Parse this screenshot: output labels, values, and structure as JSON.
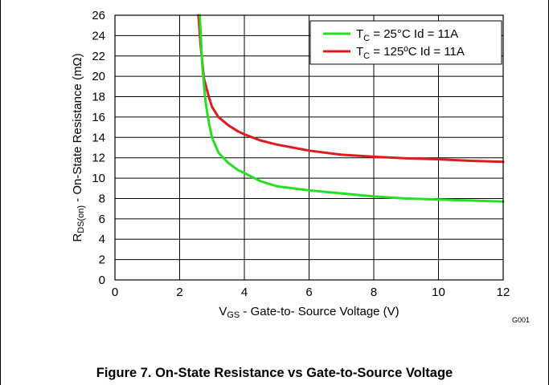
{
  "caption": "Figure 7. On-State Resistance vs Gate-to-Source Voltage",
  "chart_data": {
    "type": "line",
    "title": "",
    "xlabel": {
      "prefix": "V",
      "sub": "GS",
      "rest": " - Gate-to- Source Voltage (V)"
    },
    "ylabel": {
      "prefix": "R",
      "sub": "DS(on)",
      "rest": " - On-State Resistance (mΩ)"
    },
    "xlim": [
      0,
      12
    ],
    "ylim": [
      0,
      26
    ],
    "xticks": [
      0,
      2,
      4,
      6,
      8,
      10,
      12
    ],
    "yticks": [
      0,
      2,
      4,
      6,
      8,
      10,
      12,
      14,
      16,
      18,
      20,
      22,
      24,
      26
    ],
    "grid": true,
    "legend_position": "top-right",
    "figure_id": "G001",
    "series": [
      {
        "name": {
          "pre": "T",
          "sub": "C",
          "post": " = 25°C   Id = 11A"
        },
        "color": "#22e022",
        "x": [
          2.62,
          2.7,
          2.8,
          2.9,
          3.0,
          3.2,
          3.5,
          3.8,
          4.0,
          4.5,
          5.0,
          6.0,
          7.0,
          8.0,
          9.0,
          10.0,
          11.0,
          12.0
        ],
        "y": [
          26,
          21,
          17.5,
          15.5,
          14.0,
          12.5,
          11.5,
          10.8,
          10.5,
          9.7,
          9.2,
          8.8,
          8.5,
          8.2,
          8.0,
          7.9,
          7.8,
          7.7
        ]
      },
      {
        "name": {
          "pre": "T",
          "sub": "C",
          "post": " = 125ºC Id = 11A"
        },
        "color": "#e01b1b",
        "x": [
          2.58,
          2.65,
          2.75,
          2.9,
          3.0,
          3.2,
          3.5,
          3.8,
          4.0,
          4.5,
          5.0,
          6.0,
          7.0,
          8.0,
          9.0,
          10.0,
          11.0,
          12.0
        ],
        "y": [
          26,
          23,
          19.8,
          18.0,
          17.0,
          16.0,
          15.2,
          14.6,
          14.3,
          13.7,
          13.3,
          12.7,
          12.3,
          12.1,
          11.95,
          11.85,
          11.7,
          11.6
        ]
      }
    ]
  }
}
